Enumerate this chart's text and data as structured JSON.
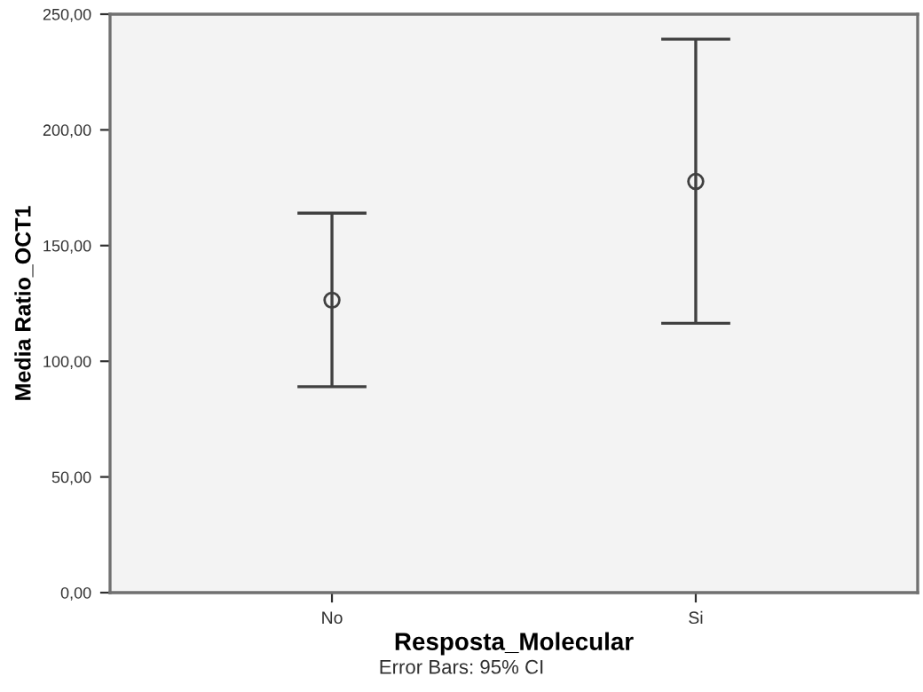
{
  "chart_data": {
    "type": "scatter",
    "xlabel": "Resposta_Molecular",
    "ylabel": "Media Ratio_OCT1",
    "categories": [
      "No",
      "Si"
    ],
    "series": [
      {
        "color": "#404040",
        "values": [
          126.4,
          177.7
        ],
        "errors": [
          [
            89,
            164
          ],
          [
            116.4,
            239.2
          ]
        ]
      }
    ],
    "marker": "circle",
    "ylim": [
      0,
      250
    ],
    "yticks": [
      {
        "value": 0,
        "label": "0,00"
      },
      {
        "value": 50,
        "label": "50,00"
      },
      {
        "value": 100,
        "label": "100,00"
      },
      {
        "value": 150,
        "label": "150,00"
      },
      {
        "value": 200,
        "label": "200,00"
      },
      {
        "value": 250,
        "label": "250,00"
      }
    ],
    "grid": false,
    "annotations": [
      "Error Bars: 95% CI"
    ]
  }
}
